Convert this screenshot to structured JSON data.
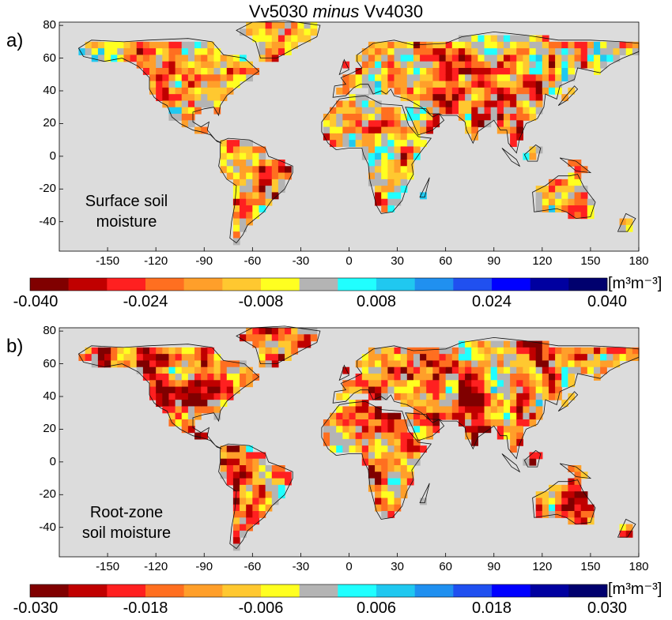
{
  "title": {
    "prefix": "Vv5030 ",
    "mid": "minus",
    "suffix": " Vv4030"
  },
  "colors": {
    "ocean": "#dcdcdc",
    "scale": [
      "#800000",
      "#c00000",
      "#ff2020",
      "#ff6f20",
      "#ff9f2a",
      "#ffc830",
      "#ffff20",
      "#b4b4b4",
      "#20ffff",
      "#20c8f0",
      "#2090f0",
      "#2050f0",
      "#0000ff",
      "#0000a0",
      "#00006e"
    ]
  },
  "axes": {
    "lat_ticks": [
      "80",
      "60",
      "40",
      "20",
      "0",
      "-20",
      "-40"
    ],
    "lon_ticks": [
      "-150",
      "-120",
      "-90",
      "-60",
      "-30",
      "0",
      "30",
      "60",
      "90",
      "120",
      "150",
      "180"
    ]
  },
  "panels": [
    {
      "letter": "a)",
      "label_line1": "Surface soil",
      "label_line2": "moisture",
      "unit": "[m³m⁻³]",
      "colorbar_ticks": [
        "-0.040",
        "-0.024",
        "-0.008",
        "0.008",
        "0.024",
        "0.040"
      ],
      "vmin": -0.04,
      "vmax": 0.04
    },
    {
      "letter": "b)",
      "label_line1": "Root-zone",
      "label_line2": "soil moisture",
      "unit": "[m³m⁻³]",
      "colorbar_ticks": [
        "-0.030",
        "-0.018",
        "-0.006",
        "0.006",
        "0.018",
        "0.030"
      ],
      "vmin": -0.03,
      "vmax": 0.03
    }
  ]
}
